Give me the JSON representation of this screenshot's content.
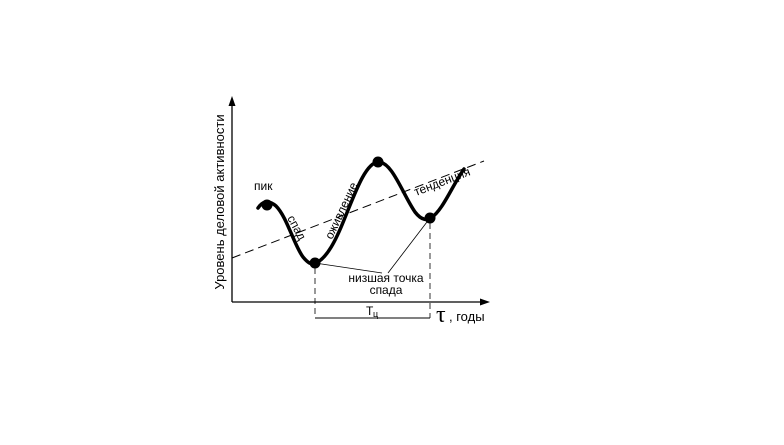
{
  "diagram": {
    "y_axis_label": "Уровень деловой активности",
    "x_axis_symbol": "τ",
    "x_axis_unit": ", годы",
    "labels": {
      "peak": "пик",
      "decline": "спад",
      "recovery": "оживление",
      "trend": "тенденция",
      "trough_line1": "низшая точка",
      "trough_line2": "спада",
      "cycle_period_main": "T",
      "cycle_period_sub": "ц"
    },
    "colors": {
      "stroke": "#000000",
      "background": "#ffffff"
    }
  }
}
